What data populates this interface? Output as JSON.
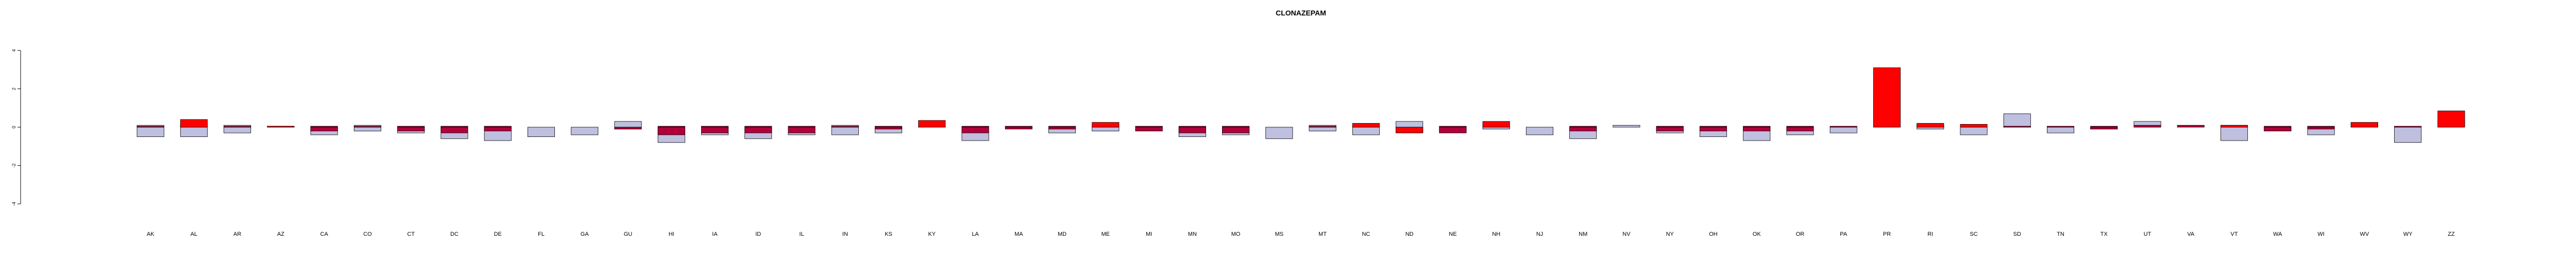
{
  "chart_data": {
    "type": "bar",
    "title": "CLONAZEPAM",
    "xlabel": "",
    "ylabel": "",
    "ylim": [
      -4,
      4
    ],
    "yticks": [
      -4,
      -2,
      0,
      2,
      4
    ],
    "grid": false,
    "legend": "none",
    "categories": [
      "AK",
      "AL",
      "AR",
      "AZ",
      "CA",
      "CO",
      "CT",
      "DC",
      "DE",
      "FL",
      "GA",
      "GU",
      "HI",
      "IA",
      "ID",
      "IL",
      "IN",
      "KS",
      "KY",
      "LA",
      "MA",
      "MD",
      "ME",
      "MI",
      "MN",
      "MO",
      "MS",
      "MT",
      "NC",
      "ND",
      "NE",
      "NH",
      "NJ",
      "NM",
      "NV",
      "NY",
      "OH",
      "OK",
      "OR",
      "PA",
      "PR",
      "RI",
      "SC",
      "SD",
      "TN",
      "TX",
      "UT",
      "VA",
      "VT",
      "WA",
      "WI",
      "WV",
      "WY",
      "ZZ"
    ],
    "series": [
      {
        "color": "#bfbfdf",
        "values": [
          0.1,
          0.1,
          0.1,
          0.0,
          0.0,
          0.1,
          0.0,
          0.0,
          0.0,
          0.0,
          0.0,
          0.3,
          0.0,
          0.0,
          0.0,
          0.0,
          0.1,
          0.0,
          0.0,
          0.0,
          0.0,
          0.0,
          0.0,
          0.0,
          0.0,
          0.0,
          0.0,
          0.1,
          0.0,
          0.3,
          0.0,
          0.0,
          0.0,
          0.0,
          0.1,
          0.0,
          0.0,
          0.0,
          0.0,
          0.0,
          0.0,
          0.1,
          0.0,
          0.7,
          0.0,
          0.0,
          0.3,
          0.0,
          0.0,
          0.0,
          0.0,
          0.0,
          0.0,
          0.0
        ]
      },
      {
        "color": "#bfbfdf",
        "values": [
          -0.5,
          -0.5,
          -0.3,
          0.0,
          -0.4,
          -0.2,
          -0.3,
          -0.6,
          -0.7,
          -0.5,
          -0.4,
          -0.1,
          -0.8,
          -0.4,
          -0.6,
          -0.4,
          -0.4,
          -0.3,
          0.0,
          -0.7,
          0.0,
          -0.3,
          -0.2,
          -0.2,
          -0.5,
          -0.4,
          -0.6,
          -0.2,
          -0.4,
          0.0,
          -0.3,
          -0.1,
          -0.4,
          -0.6,
          0.0,
          -0.3,
          -0.5,
          -0.7,
          -0.4,
          -0.3,
          0.0,
          -0.1,
          -0.4,
          0.0,
          -0.3,
          -0.1,
          0.0,
          0.0,
          -0.7,
          -0.2,
          -0.4,
          0.0,
          -0.8,
          0.0
        ]
      },
      {
        "color": "#b0003a",
        "values": [
          0.05,
          0.2,
          0.05,
          0.05,
          0.05,
          0.05,
          0.05,
          0.05,
          0.05,
          0.0,
          0.0,
          0.0,
          0.05,
          0.05,
          0.05,
          0.05,
          0.05,
          0.05,
          0.05,
          0.05,
          0.05,
          0.05,
          0.05,
          0.05,
          0.05,
          0.05,
          0.0,
          0.05,
          0.05,
          0.0,
          0.05,
          0.05,
          0.0,
          0.05,
          0.0,
          0.05,
          0.05,
          0.05,
          0.05,
          0.05,
          1.8,
          0.1,
          0.05,
          0.05,
          0.05,
          0.05,
          0.1,
          0.1,
          0.1,
          0.05,
          0.05,
          0.2,
          0.05,
          0.4
        ]
      },
      {
        "color": "#b0003a",
        "values": [
          0.0,
          0.0,
          0.0,
          0.0,
          -0.2,
          0.0,
          -0.2,
          -0.3,
          -0.2,
          0.0,
          0.0,
          -0.1,
          -0.4,
          -0.3,
          -0.3,
          -0.3,
          0.0,
          -0.1,
          0.0,
          -0.3,
          -0.1,
          -0.1,
          0.0,
          -0.2,
          -0.3,
          -0.3,
          0.0,
          0.0,
          0.0,
          -0.3,
          -0.3,
          0.0,
          0.0,
          -0.2,
          0.0,
          -0.2,
          -0.2,
          -0.2,
          -0.2,
          0.0,
          0.0,
          0.0,
          0.0,
          0.0,
          0.0,
          -0.1,
          0.0,
          0.0,
          0.0,
          -0.2,
          -0.1,
          0.0,
          0.0,
          0.0
        ]
      },
      {
        "color": "#ff0000",
        "values": [
          0.0,
          0.4,
          0.0,
          0.05,
          0.0,
          0.0,
          0.0,
          0.0,
          0.0,
          0.0,
          0.0,
          0.0,
          0.0,
          0.0,
          0.0,
          0.0,
          0.0,
          0.0,
          0.35,
          0.0,
          0.0,
          0.0,
          0.25,
          0.0,
          0.0,
          0.0,
          0.0,
          0.0,
          0.2,
          0.0,
          0.0,
          0.3,
          0.0,
          0.0,
          0.0,
          0.0,
          0.0,
          0.0,
          0.0,
          0.0,
          3.1,
          0.2,
          0.15,
          0.0,
          0.0,
          0.0,
          0.0,
          0.0,
          0.1,
          0.0,
          0.0,
          0.25,
          0.0,
          0.85
        ]
      },
      {
        "color": "#ff0000",
        "values": [
          0.0,
          0.0,
          0.0,
          0.0,
          0.0,
          0.0,
          0.0,
          0.0,
          0.0,
          0.0,
          0.0,
          0.0,
          0.0,
          0.0,
          0.0,
          0.0,
          0.0,
          0.0,
          0.0,
          0.0,
          0.0,
          0.0,
          0.0,
          0.0,
          0.0,
          0.0,
          0.0,
          0.0,
          0.0,
          -0.3,
          0.0,
          0.0,
          0.0,
          0.0,
          0.0,
          0.0,
          0.0,
          0.0,
          0.0,
          0.0,
          0.0,
          0.0,
          0.0,
          0.0,
          0.0,
          0.0,
          0.0,
          0.0,
          0.0,
          0.0,
          0.0,
          0.0,
          0.0,
          0.0
        ]
      }
    ]
  }
}
